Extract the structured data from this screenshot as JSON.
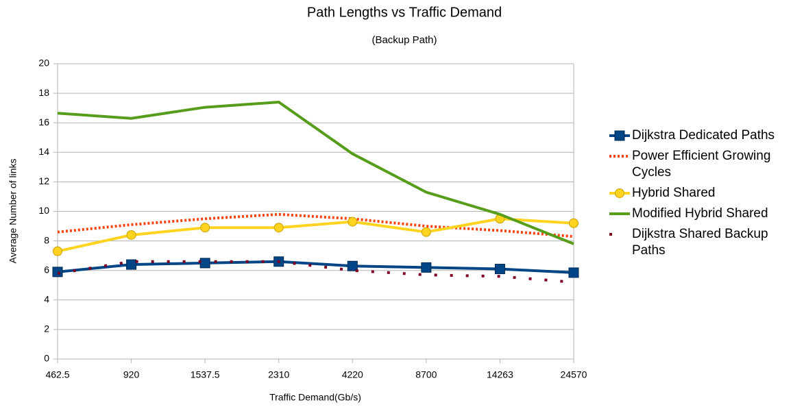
{
  "chart_data": {
    "type": "line",
    "title": "Path Lengths vs Traffic Demand",
    "subtitle": "(Backup Path)",
    "x_label": "Traffic Demand(Gb/s)",
    "y_label": "Average Number of links",
    "categories": [
      "462.5",
      "920",
      "1537.5",
      "2310",
      "4220",
      "8700",
      "14263",
      "24570"
    ],
    "ylim": [
      0,
      20
    ],
    "yticks": [
      0,
      2,
      4,
      6,
      8,
      10,
      12,
      14,
      16,
      18,
      20
    ],
    "grid": true,
    "legend": "right",
    "series": [
      {
        "name": "Dijkstra Dedicated Paths",
        "color": "#004586",
        "marker": "square",
        "line_style": "solid",
        "values": [
          5.9,
          6.4,
          6.5,
          6.6,
          6.3,
          6.2,
          6.1,
          5.85
        ]
      },
      {
        "name": "Power Efficient Growing Cycles",
        "color": "#ff420e",
        "marker": "none",
        "line_style": "dotted",
        "values": [
          8.6,
          9.1,
          9.5,
          9.8,
          9.5,
          9.0,
          8.7,
          8.3
        ]
      },
      {
        "name": "Hybrid Shared",
        "color": "#ffd320",
        "marker": "circle",
        "line_style": "solid",
        "values": [
          7.3,
          8.4,
          8.9,
          8.9,
          9.3,
          8.6,
          9.5,
          9.2
        ]
      },
      {
        "name": "Modified Hybrid Shared",
        "color": "#579d1c",
        "marker": "none",
        "line_style": "solid",
        "values": [
          16.65,
          16.3,
          17.05,
          17.4,
          13.9,
          11.3,
          9.8,
          7.8
        ]
      },
      {
        "name": "Dijkstra Shared Backup Paths",
        "color": "#7e0021",
        "marker": "none",
        "line_style": "sparse-dotted",
        "values": [
          5.8,
          6.6,
          6.6,
          6.6,
          6.0,
          5.7,
          5.6,
          5.2
        ]
      }
    ]
  }
}
